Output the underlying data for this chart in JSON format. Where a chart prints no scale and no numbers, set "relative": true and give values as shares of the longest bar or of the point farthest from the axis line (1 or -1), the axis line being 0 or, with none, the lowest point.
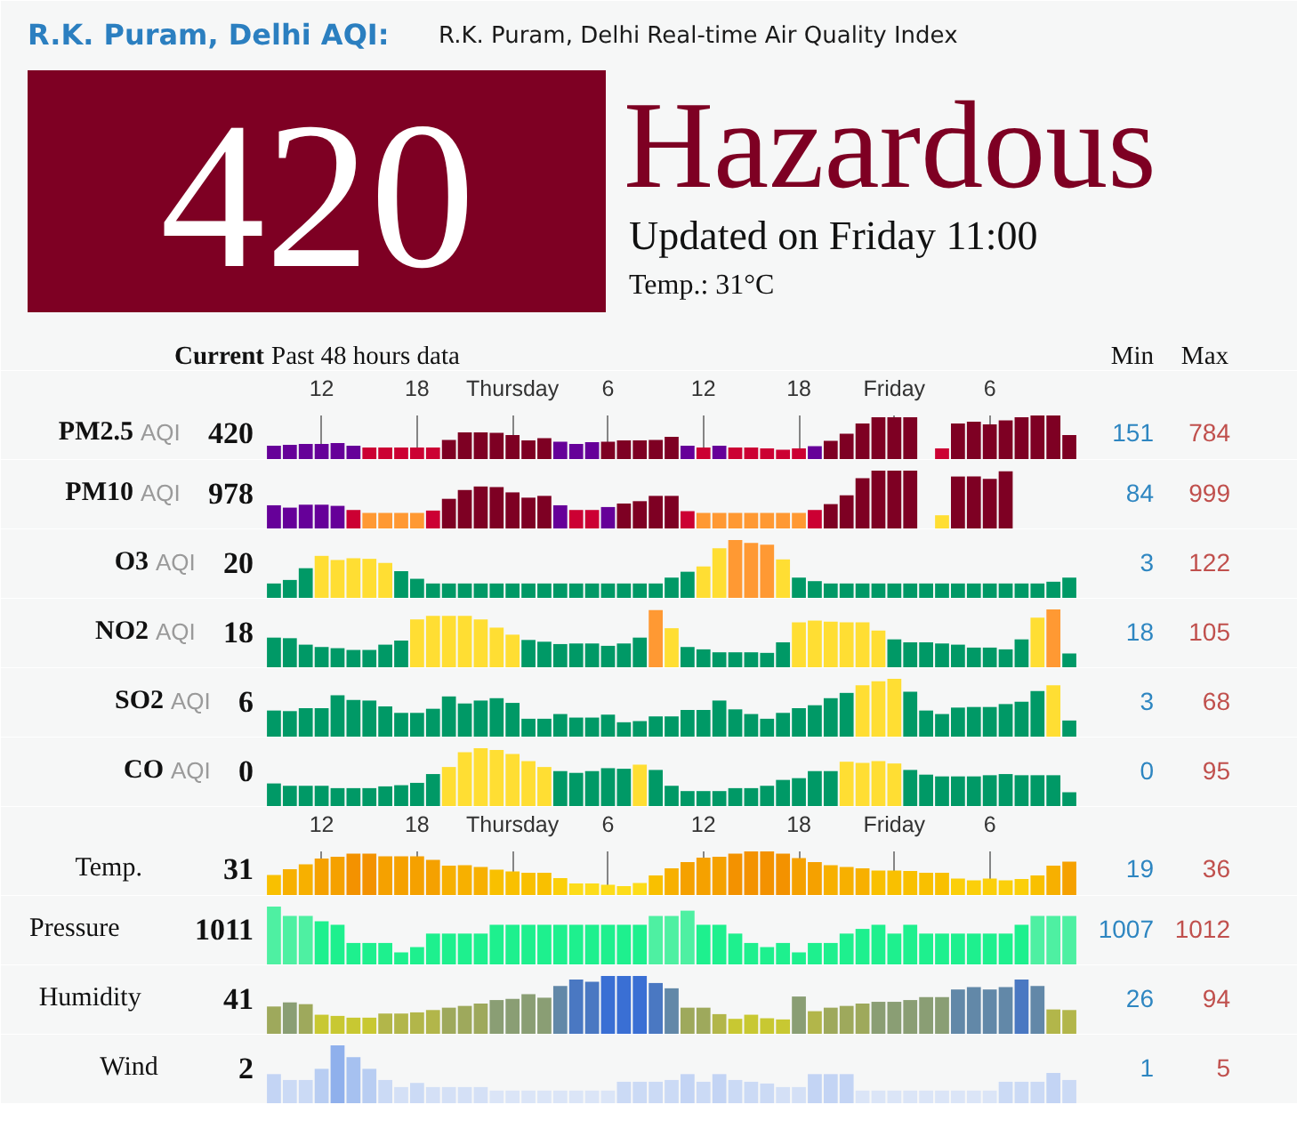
{
  "chart_data": [
    {
      "type": "other",
      "title": "R.K. Puram, Delhi AQI:",
      "subtitle": "R.K. Puram, Delhi Real-time Air Quality Index",
      "color": "#7e0023",
      "annotations": [
        "420",
        "Hazardous",
        "Updated on Friday 11:00",
        "Temp.: 31°C",
        "Current",
        "Past 48 hours data",
        "Min",
        "Max"
      ]
    },
    {
      "type": "bar",
      "title": "PM2.5",
      "subtitle": "AQI",
      "annotations": [
        "420",
        "151",
        "784"
      ],
      "relative": true,
      "categories": [
        null,
        null,
        null,
        "12",
        null,
        null,
        null,
        null,
        null,
        "18",
        null,
        null,
        null,
        null,
        null,
        "Thursday",
        null,
        null,
        null,
        null,
        null,
        "6",
        null,
        null,
        null,
        null,
        null,
        "12",
        null,
        null,
        null,
        null,
        null,
        "18",
        null,
        null,
        null,
        null,
        null,
        "Friday",
        null,
        null,
        null,
        null,
        null,
        "6",
        null,
        null,
        null,
        null,
        null
      ],
      "values": [
        0.32,
        0.34,
        0.36,
        0.36,
        0.38,
        0.32,
        0.28,
        0.28,
        0.28,
        0.28,
        0.28,
        0.45,
        0.62,
        0.62,
        0.61,
        0.56,
        0.44,
        0.49,
        0.41,
        0.36,
        0.4,
        0.41,
        0.44,
        0.44,
        0.45,
        0.52,
        0.32,
        0.28,
        0.32,
        0.28,
        0.28,
        0.26,
        0.23,
        0.26,
        0.31,
        0.43,
        0.59,
        0.82,
        0.96,
        0.96,
        0.96,
        null,
        0.26,
        0.82,
        0.86,
        0.8,
        0.89,
        0.96,
        1,
        1,
        0.56
      ],
      "colors": [
        "#660099",
        "#660099",
        "#660099",
        "#660099",
        "#660099",
        "#660099",
        "#cc0033",
        "#cc0033",
        "#cc0033",
        "#cc0033",
        "#cc0033",
        "#7e0023",
        "#7e0023",
        "#7e0023",
        "#7e0023",
        "#7e0023",
        "#7e0023",
        "#7e0023",
        "#660099",
        "#660099",
        "#660099",
        "#7e0023",
        "#7e0023",
        "#7e0023",
        "#7e0023",
        "#7e0023",
        "#660099",
        "#cc0033",
        "#660099",
        "#cc0033",
        "#cc0033",
        "#cc0033",
        "#cc0033",
        "#cc0033",
        "#660099",
        "#7e0023",
        "#7e0023",
        "#7e0023",
        "#7e0023",
        "#7e0023",
        "#7e0023",
        null,
        "#cc0033",
        "#7e0023",
        "#7e0023",
        "#7e0023",
        "#7e0023",
        "#7e0023",
        "#7e0023",
        "#7e0023",
        "#7e0023"
      ],
      "grid": "x",
      "tick_labels": "x"
    },
    {
      "type": "bar",
      "title": "PM10",
      "subtitle": "AQI",
      "annotations": [
        "978",
        "84",
        "999"
      ],
      "relative": true,
      "categories": [
        null,
        null,
        null,
        null,
        null,
        null,
        null,
        null,
        null,
        null,
        null,
        null,
        null,
        null,
        null,
        null,
        null,
        null,
        null,
        null,
        null,
        null,
        null,
        null,
        null,
        null,
        null,
        null,
        null,
        null,
        null,
        null,
        null,
        null,
        null,
        null,
        null,
        null,
        null,
        null,
        null,
        null,
        null,
        null,
        null,
        null,
        null,
        null,
        null,
        null,
        null
      ],
      "values": [
        0.41,
        0.37,
        0.42,
        0.42,
        0.4,
        0.33,
        0.28,
        0.28,
        0.28,
        0.28,
        0.32,
        0.52,
        0.67,
        0.73,
        0.72,
        0.63,
        0.54,
        0.57,
        0.41,
        0.33,
        0.33,
        0.38,
        0.44,
        0.48,
        0.57,
        0.57,
        0.31,
        0.28,
        0.28,
        0.28,
        0.28,
        0.28,
        0.28,
        0.28,
        0.33,
        0.43,
        0.58,
        0.87,
        1,
        1,
        1,
        null,
        0.24,
        0.9,
        0.9,
        0.86,
        0.99,
        null,
        null,
        null,
        null
      ],
      "colors": [
        "#660099",
        "#660099",
        "#660099",
        "#660099",
        "#660099",
        "#cc0033",
        "#ff9933",
        "#ff9933",
        "#ff9933",
        "#ff9933",
        "#cc0033",
        "#7e0023",
        "#7e0023",
        "#7e0023",
        "#7e0023",
        "#7e0023",
        "#7e0023",
        "#7e0023",
        "#660099",
        "#cc0033",
        "#cc0033",
        "#660099",
        "#7e0023",
        "#7e0023",
        "#7e0023",
        "#7e0023",
        "#cc0033",
        "#ff9933",
        "#ff9933",
        "#ff9933",
        "#ff9933",
        "#ff9933",
        "#ff9933",
        "#ff9933",
        "#cc0033",
        "#7e0023",
        "#7e0023",
        "#7e0023",
        "#7e0023",
        "#7e0023",
        "#7e0023",
        null,
        "#ffde33",
        "#7e0023",
        "#7e0023",
        "#7e0023",
        "#7e0023",
        null,
        null,
        null,
        null
      ],
      "tick_labels": false
    },
    {
      "type": "bar",
      "title": "O3",
      "subtitle": "AQI",
      "annotations": [
        "20",
        "3",
        "122"
      ],
      "relative": true,
      "categories": [
        null,
        null,
        null,
        null,
        null,
        null,
        null,
        null,
        null,
        null,
        null,
        null,
        null,
        null,
        null,
        null,
        null,
        null,
        null,
        null,
        null,
        null,
        null,
        null,
        null,
        null,
        null,
        null,
        null,
        null,
        null,
        null,
        null,
        null,
        null,
        null,
        null,
        null,
        null,
        null,
        null,
        null,
        null,
        null,
        null,
        null,
        null,
        null,
        null,
        null,
        null
      ],
      "values": [
        0.26,
        0.32,
        0.52,
        0.73,
        0.66,
        0.69,
        0.68,
        0.61,
        0.47,
        0.34,
        0.26,
        0.26,
        0.26,
        0.26,
        0.26,
        0.26,
        0.26,
        0.26,
        0.26,
        0.26,
        0.26,
        0.26,
        0.26,
        0.26,
        0.26,
        0.36,
        0.46,
        0.55,
        0.86,
        1,
        0.95,
        0.92,
        0.67,
        0.36,
        0.3,
        0.26,
        0.26,
        0.26,
        0.26,
        0.26,
        0.26,
        0.26,
        0.26,
        0.26,
        0.26,
        0.26,
        0.26,
        0.26,
        0.26,
        0.29,
        0.36
      ],
      "colors": [
        "#009966",
        "#009966",
        "#009966",
        "#ffde33",
        "#ffde33",
        "#ffde33",
        "#ffde33",
        "#ffde33",
        "#009966",
        "#009966",
        "#009966",
        "#009966",
        "#009966",
        "#009966",
        "#009966",
        "#009966",
        "#009966",
        "#009966",
        "#009966",
        "#009966",
        "#009966",
        "#009966",
        "#009966",
        "#009966",
        "#009966",
        "#009966",
        "#009966",
        "#ffde33",
        "#ffde33",
        "#ff9933",
        "#ff9933",
        "#ff9933",
        "#ffde33",
        "#009966",
        "#009966",
        "#009966",
        "#009966",
        "#009966",
        "#009966",
        "#009966",
        "#009966",
        "#009966",
        "#009966",
        "#009966",
        "#009966",
        "#009966",
        "#009966",
        "#009966",
        "#009966",
        "#009966",
        "#009966"
      ],
      "tick_labels": false
    },
    {
      "type": "bar",
      "title": "NO2",
      "subtitle": "AQI",
      "annotations": [
        "18",
        "18",
        "105"
      ],
      "relative": true,
      "categories": [
        null,
        null,
        null,
        null,
        null,
        null,
        null,
        null,
        null,
        null,
        null,
        null,
        null,
        null,
        null,
        null,
        null,
        null,
        null,
        null,
        null,
        null,
        null,
        null,
        null,
        null,
        null,
        null,
        null,
        null,
        null,
        null,
        null,
        null,
        null,
        null,
        null,
        null,
        null,
        null,
        null,
        null,
        null,
        null,
        null,
        null,
        null,
        null,
        null,
        null,
        null
      ],
      "values": [
        0.52,
        0.51,
        0.4,
        0.36,
        0.34,
        0.31,
        0.31,
        0.4,
        0.47,
        0.83,
        0.89,
        0.89,
        0.89,
        0.83,
        0.69,
        0.57,
        0.48,
        0.45,
        0.41,
        0.42,
        0.42,
        0.38,
        0.42,
        0.52,
        0.99,
        0.68,
        0.36,
        0.32,
        0.27,
        0.27,
        0.27,
        0.26,
        0.44,
        0.78,
        0.81,
        0.79,
        0.78,
        0.78,
        0.64,
        0.49,
        0.44,
        0.44,
        0.42,
        0.4,
        0.35,
        0.35,
        0.32,
        0.49,
        0.86,
        1,
        0.25
      ],
      "colors": [
        "#009966",
        "#009966",
        "#009966",
        "#009966",
        "#009966",
        "#009966",
        "#009966",
        "#009966",
        "#009966",
        "#ffde33",
        "#ffde33",
        "#ffde33",
        "#ffde33",
        "#ffde33",
        "#ffde33",
        "#ffde33",
        "#009966",
        "#009966",
        "#009966",
        "#009966",
        "#009966",
        "#009966",
        "#009966",
        "#009966",
        "#ff9933",
        "#ffde33",
        "#009966",
        "#009966",
        "#009966",
        "#009966",
        "#009966",
        "#009966",
        "#009966",
        "#ffde33",
        "#ffde33",
        "#ffde33",
        "#ffde33",
        "#ffde33",
        "#ffde33",
        "#009966",
        "#009966",
        "#009966",
        "#009966",
        "#009966",
        "#009966",
        "#009966",
        "#009966",
        "#009966",
        "#ffde33",
        "#ff9933",
        "#009966"
      ],
      "tick_labels": false
    },
    {
      "type": "bar",
      "title": "SO2",
      "subtitle": "AQI",
      "annotations": [
        "6",
        "3",
        "68"
      ],
      "relative": true,
      "categories": [
        null,
        null,
        null,
        null,
        null,
        null,
        null,
        null,
        null,
        null,
        null,
        null,
        null,
        null,
        null,
        null,
        null,
        null,
        null,
        null,
        null,
        null,
        null,
        null,
        null,
        null,
        null,
        null,
        null,
        null,
        null,
        null,
        null,
        null,
        null,
        null,
        null,
        null,
        null,
        null,
        null,
        null,
        null,
        null,
        null,
        null,
        null,
        null,
        null,
        null,
        null
      ],
      "values": [
        0.46,
        0.45,
        0.5,
        0.5,
        0.72,
        0.64,
        0.63,
        0.53,
        0.42,
        0.42,
        0.49,
        0.7,
        0.58,
        0.63,
        0.67,
        0.59,
        0.32,
        0.32,
        0.4,
        0.34,
        0.34,
        0.39,
        0.26,
        0.28,
        0.36,
        0.36,
        0.47,
        0.47,
        0.63,
        0.48,
        0.4,
        0.32,
        0.42,
        0.5,
        0.55,
        0.67,
        0.76,
        0.89,
        0.96,
        1,
        0.78,
        0.46,
        0.4,
        0.51,
        0.52,
        0.52,
        0.57,
        0.61,
        0.79,
        0.89,
        0.29
      ],
      "colors": [
        "#009966",
        "#009966",
        "#009966",
        "#009966",
        "#009966",
        "#009966",
        "#009966",
        "#009966",
        "#009966",
        "#009966",
        "#009966",
        "#009966",
        "#009966",
        "#009966",
        "#009966",
        "#009966",
        "#009966",
        "#009966",
        "#009966",
        "#009966",
        "#009966",
        "#009966",
        "#009966",
        "#009966",
        "#009966",
        "#009966",
        "#009966",
        "#009966",
        "#009966",
        "#009966",
        "#009966",
        "#009966",
        "#009966",
        "#009966",
        "#009966",
        "#009966",
        "#009966",
        "#ffde33",
        "#ffde33",
        "#ffde33",
        "#009966",
        "#009966",
        "#009966",
        "#009966",
        "#009966",
        "#009966",
        "#009966",
        "#009966",
        "#009966",
        "#ffde33",
        "#009966"
      ],
      "tick_labels": false
    },
    {
      "type": "bar",
      "title": "CO",
      "subtitle": "AQI",
      "annotations": [
        "0",
        "0",
        "95"
      ],
      "relative": true,
      "categories": [
        null,
        null,
        null,
        null,
        null,
        null,
        null,
        null,
        null,
        null,
        null,
        null,
        null,
        null,
        null,
        null,
        null,
        null,
        null,
        null,
        null,
        null,
        null,
        null,
        null,
        null,
        null,
        null,
        null,
        null,
        null,
        null,
        null,
        null,
        null,
        null,
        null,
        null,
        null,
        null,
        null,
        null,
        null,
        null,
        null,
        null,
        null,
        null,
        null,
        null,
        null
      ],
      "values": [
        0.4,
        0.36,
        0.36,
        0.36,
        0.32,
        0.32,
        0.32,
        0.35,
        0.37,
        0.41,
        0.56,
        0.68,
        0.93,
        1,
        0.97,
        0.9,
        0.78,
        0.68,
        0.61,
        0.58,
        0.61,
        0.66,
        0.65,
        0.72,
        0.63,
        0.36,
        0.27,
        0.27,
        0.27,
        0.32,
        0.32,
        0.36,
        0.46,
        0.49,
        0.61,
        0.61,
        0.77,
        0.75,
        0.78,
        0.74,
        0.63,
        0.55,
        0.52,
        0.52,
        0.52,
        0.54,
        0.56,
        0.54,
        0.54,
        0.54,
        0.25
      ],
      "colors": [
        "#009966",
        "#009966",
        "#009966",
        "#009966",
        "#009966",
        "#009966",
        "#009966",
        "#009966",
        "#009966",
        "#009966",
        "#009966",
        "#ffde33",
        "#ffde33",
        "#ffde33",
        "#ffde33",
        "#ffde33",
        "#ffde33",
        "#ffde33",
        "#009966",
        "#009966",
        "#009966",
        "#009966",
        "#009966",
        "#ffde33",
        "#009966",
        "#009966",
        "#009966",
        "#009966",
        "#009966",
        "#009966",
        "#009966",
        "#009966",
        "#009966",
        "#009966",
        "#009966",
        "#009966",
        "#ffde33",
        "#ffde33",
        "#ffde33",
        "#ffde33",
        "#009966",
        "#009966",
        "#009966",
        "#009966",
        "#009966",
        "#009966",
        "#009966",
        "#009966",
        "#009966",
        "#009966",
        "#009966"
      ],
      "tick_labels": false
    },
    {
      "type": "bar",
      "title": "Temp.",
      "annotations": [
        "31",
        "19",
        "36"
      ],
      "relative": true,
      "categories": [
        null,
        null,
        null,
        "12",
        null,
        null,
        null,
        null,
        null,
        "18",
        null,
        null,
        null,
        null,
        null,
        "Thursday",
        null,
        null,
        null,
        null,
        null,
        "6",
        null,
        null,
        null,
        null,
        null,
        "12",
        null,
        null,
        null,
        null,
        null,
        "18",
        null,
        null,
        null,
        null,
        null,
        "Friday",
        null,
        null,
        null,
        null,
        null,
        "6",
        null,
        null,
        null,
        null,
        null
      ],
      "values": [
        0.47,
        0.6,
        0.71,
        0.84,
        0.88,
        0.95,
        0.95,
        0.89,
        0.89,
        0.89,
        0.81,
        0.68,
        0.69,
        0.65,
        0.59,
        0.55,
        0.52,
        0.52,
        0.4,
        0.28,
        0.28,
        0.25,
        0.22,
        0.29,
        0.46,
        0.62,
        0.76,
        0.86,
        0.88,
        0.95,
        1,
        1,
        0.95,
        0.85,
        0.76,
        0.69,
        0.65,
        0.62,
        0.57,
        0.57,
        0.56,
        0.52,
        0.52,
        0.39,
        0.35,
        0.39,
        0.35,
        0.38,
        0.46,
        0.68,
        0.77
      ],
      "colors": [
        "#f9c000",
        "#f7b000",
        "#f7b000",
        "#f5a100",
        "#f5a100",
        "#f39200",
        "#f39200",
        "#f5a100",
        "#f5a100",
        "#f5a100",
        "#f5a100",
        "#f7b000",
        "#f7b000",
        "#f7b000",
        "#f9c000",
        "#f9c000",
        "#f9c000",
        "#f9c000",
        "#fbcf0a",
        "#fddc1a",
        "#fddc1a",
        "#fddc1a",
        "#fddc1a",
        "#fddc1a",
        "#f9c000",
        "#f7b000",
        "#f5a100",
        "#f5a100",
        "#f5a100",
        "#f39200",
        "#f39200",
        "#f39200",
        "#f39200",
        "#f5a100",
        "#f5a100",
        "#f7b000",
        "#f7b000",
        "#f7b000",
        "#f9c000",
        "#f9c000",
        "#f9c000",
        "#f9c000",
        "#f9c000",
        "#fbcf0a",
        "#fbcf0a",
        "#fbcf0a",
        "#fbcf0a",
        "#fbcf0a",
        "#f9c000",
        "#f7b000",
        "#f5a100"
      ],
      "grid": "x",
      "tick_labels": "x"
    },
    {
      "type": "bar",
      "title": "Pressure",
      "annotations": [
        "1011",
        "1007",
        "1012"
      ],
      "relative": true,
      "categories": [
        null,
        null,
        null,
        null,
        null,
        null,
        null,
        null,
        null,
        null,
        null,
        null,
        null,
        null,
        null,
        null,
        null,
        null,
        null,
        null,
        null,
        null,
        null,
        null,
        null,
        null,
        null,
        null,
        null,
        null,
        null,
        null,
        null,
        null,
        null,
        null,
        null,
        null,
        null,
        null,
        null,
        null,
        null,
        null,
        null,
        null,
        null,
        null,
        null,
        null,
        null
      ],
      "values": [
        1,
        0.84,
        0.84,
        0.75,
        0.69,
        0.38,
        0.38,
        0.38,
        0.22,
        0.31,
        0.54,
        0.54,
        0.54,
        0.54,
        0.69,
        0.69,
        0.69,
        0.69,
        0.69,
        0.69,
        0.69,
        0.69,
        0.69,
        0.69,
        0.84,
        0.84,
        0.93,
        0.69,
        0.69,
        0.54,
        0.38,
        0.31,
        0.38,
        0.22,
        0.38,
        0.38,
        0.54,
        0.62,
        0.69,
        0.54,
        0.69,
        0.54,
        0.54,
        0.54,
        0.54,
        0.54,
        0.54,
        0.69,
        0.84,
        0.84,
        0.84
      ],
      "colors": [
        "#4ef0a2",
        "#4ef0a2",
        "#4ef0a2",
        "#1ef08e",
        "#1ef08e",
        "#1ef08e",
        "#1ef08e",
        "#1ef08e",
        "#1ef08e",
        "#1ef08e",
        "#1ef08e",
        "#1ef08e",
        "#1ef08e",
        "#1ef08e",
        "#1ef08e",
        "#1ef08e",
        "#1ef08e",
        "#1ef08e",
        "#1ef08e",
        "#1ef08e",
        "#1ef08e",
        "#1ef08e",
        "#1ef08e",
        "#1ef08e",
        "#4ef0a2",
        "#4ef0a2",
        "#4ef0a2",
        "#1ef08e",
        "#1ef08e",
        "#1ef08e",
        "#1ef08e",
        "#1ef08e",
        "#1ef08e",
        "#1ef08e",
        "#1ef08e",
        "#1ef08e",
        "#1ef08e",
        "#1ef08e",
        "#1ef08e",
        "#1ef08e",
        "#1ef08e",
        "#1ef08e",
        "#1ef08e",
        "#1ef08e",
        "#1ef08e",
        "#1ef08e",
        "#1ef08e",
        "#1ef08e",
        "#4ef0a2",
        "#4ef0a2",
        "#4ef0a2"
      ],
      "tick_labels": false
    },
    {
      "type": "bar",
      "title": "Humidity",
      "annotations": [
        "41",
        "26",
        "94"
      ],
      "relative": true,
      "categories": [
        null,
        null,
        null,
        null,
        null,
        null,
        null,
        null,
        null,
        null,
        null,
        null,
        null,
        null,
        null,
        null,
        null,
        null,
        null,
        null,
        null,
        null,
        null,
        null,
        null,
        null,
        null,
        null,
        null,
        null,
        null,
        null,
        null,
        null,
        null,
        null,
        null,
        null,
        null,
        null,
        null,
        null,
        null,
        null,
        null,
        null,
        null,
        null,
        null,
        null,
        null
      ],
      "values": [
        0.48,
        0.55,
        0.52,
        0.34,
        0.32,
        0.29,
        0.29,
        0.36,
        0.36,
        0.38,
        0.42,
        0.46,
        0.49,
        0.53,
        0.59,
        0.61,
        0.69,
        0.63,
        0.83,
        0.94,
        0.9,
        1,
        1,
        1,
        0.88,
        0.79,
        0.46,
        0.46,
        0.35,
        0.27,
        0.34,
        0.28,
        0.26,
        0.65,
        0.4,
        0.46,
        0.49,
        0.53,
        0.56,
        0.56,
        0.59,
        0.64,
        0.64,
        0.77,
        0.81,
        0.77,
        0.81,
        0.94,
        0.83,
        0.43,
        0.42
      ],
      "colors": [
        "#9ea95c",
        "#8a9e74",
        "#9ea95c",
        "#c8c832",
        "#c8c832",
        "#c8c832",
        "#c8c832",
        "#b2b64a",
        "#b2b64a",
        "#b2b64a",
        "#b2b64a",
        "#9ea95c",
        "#9ea95c",
        "#9ea95c",
        "#8a9e74",
        "#8a9e74",
        "#8a9e74",
        "#8a9e74",
        "#6288a8",
        "#4a78c2",
        "#4a78c2",
        "#3a6fd4",
        "#3a6fd4",
        "#3a6fd4",
        "#4a78c2",
        "#6288a8",
        "#9ea95c",
        "#9ea95c",
        "#b2b64a",
        "#c8c832",
        "#c8c832",
        "#c8c832",
        "#c8c832",
        "#8a9e74",
        "#b2b64a",
        "#9ea95c",
        "#9ea95c",
        "#9ea95c",
        "#8a9e74",
        "#8a9e74",
        "#8a9e74",
        "#8a9e74",
        "#8a9e74",
        "#6288a8",
        "#6288a8",
        "#6288a8",
        "#6288a8",
        "#4a78c2",
        "#6288a8",
        "#b2b64a",
        "#b2b64a"
      ],
      "tick_labels": false
    },
    {
      "type": "bar",
      "title": "Wind",
      "annotations": [
        "2",
        "1",
        "5"
      ],
      "relative": true,
      "categories": [
        null,
        null,
        null,
        null,
        null,
        null,
        null,
        null,
        null,
        null,
        null,
        null,
        null,
        null,
        null,
        null,
        null,
        null,
        null,
        null,
        null,
        null,
        null,
        null,
        null,
        null,
        null,
        null,
        null,
        null,
        null,
        null,
        null,
        null,
        null,
        null,
        null,
        null,
        null,
        null,
        null,
        null,
        null,
        null,
        null,
        null,
        null,
        null,
        null,
        null,
        null
      ],
      "values": [
        0.51,
        0.41,
        0.41,
        0.6,
        1,
        0.8,
        0.6,
        0.41,
        0.29,
        0.36,
        0.29,
        0.29,
        0.29,
        0.29,
        0.23,
        0.23,
        0.23,
        0.23,
        0.23,
        0.23,
        0.23,
        0.23,
        0.38,
        0.38,
        0.38,
        0.41,
        0.51,
        0.38,
        0.51,
        0.41,
        0.38,
        0.35,
        0.29,
        0.29,
        0.51,
        0.51,
        0.51,
        0.23,
        0.23,
        0.23,
        0.23,
        0.23,
        0.23,
        0.23,
        0.23,
        0.23,
        0.38,
        0.38,
        0.38,
        0.53,
        0.41
      ],
      "colors": [
        "#c3d4f4",
        "#cbdaf5",
        "#cbdaf5",
        "#b8cdf2",
        "#8fb0ec",
        "#a6c1f0",
        "#b8cdf2",
        "#cbdaf5",
        "#d4e0f6",
        "#cbdaf5",
        "#d4e0f6",
        "#d4e0f6",
        "#d4e0f6",
        "#d4e0f6",
        "#dbe5f7",
        "#dbe5f7",
        "#dbe5f7",
        "#dbe5f7",
        "#dbe5f7",
        "#dbe5f7",
        "#dbe5f7",
        "#dbe5f7",
        "#cbdaf5",
        "#cbdaf5",
        "#cbdaf5",
        "#cbdaf5",
        "#c3d4f4",
        "#cbdaf5",
        "#c3d4f4",
        "#cbdaf5",
        "#cbdaf5",
        "#cbdaf5",
        "#d4e0f6",
        "#d4e0f6",
        "#c3d4f4",
        "#c3d4f4",
        "#c3d4f4",
        "#dbe5f7",
        "#dbe5f7",
        "#dbe5f7",
        "#dbe5f7",
        "#dbe5f7",
        "#dbe5f7",
        "#dbe5f7",
        "#dbe5f7",
        "#dbe5f7",
        "#cbdaf5",
        "#cbdaf5",
        "#cbdaf5",
        "#c3d4f4",
        "#cbdaf5"
      ],
      "tick_labels": false
    }
  ]
}
